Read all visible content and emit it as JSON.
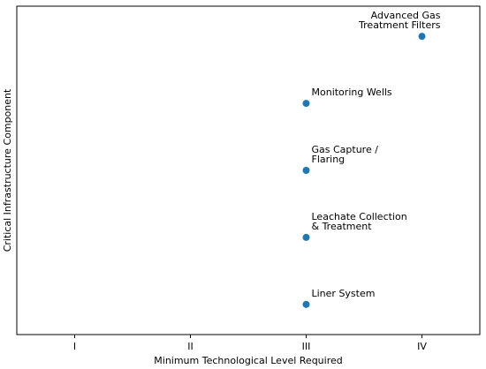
{
  "chart_data": {
    "type": "scatter",
    "title": "",
    "xlabel": "Minimum Technological Level Required",
    "ylabel": "Critical Infrastructure Component",
    "x_categories": [
      "I",
      "II",
      "III",
      "IV"
    ],
    "xlim": [
      0.5,
      4.5
    ],
    "ylim": [
      -0.45,
      4.45
    ],
    "grid": false,
    "color": "#1f77b4",
    "points": [
      {
        "x": "III",
        "y": 0,
        "label": [
          "Liner System"
        ]
      },
      {
        "x": "III",
        "y": 1,
        "label": [
          "Leachate Collection",
          "& Treatment"
        ]
      },
      {
        "x": "III",
        "y": 2,
        "label": [
          "Gas Capture /",
          "Flaring"
        ]
      },
      {
        "x": "III",
        "y": 3,
        "label": [
          "Monitoring Wells"
        ]
      },
      {
        "x": "IV",
        "y": 4,
        "label": [
          "Advanced Gas",
          "Treatment Filters"
        ]
      }
    ]
  }
}
